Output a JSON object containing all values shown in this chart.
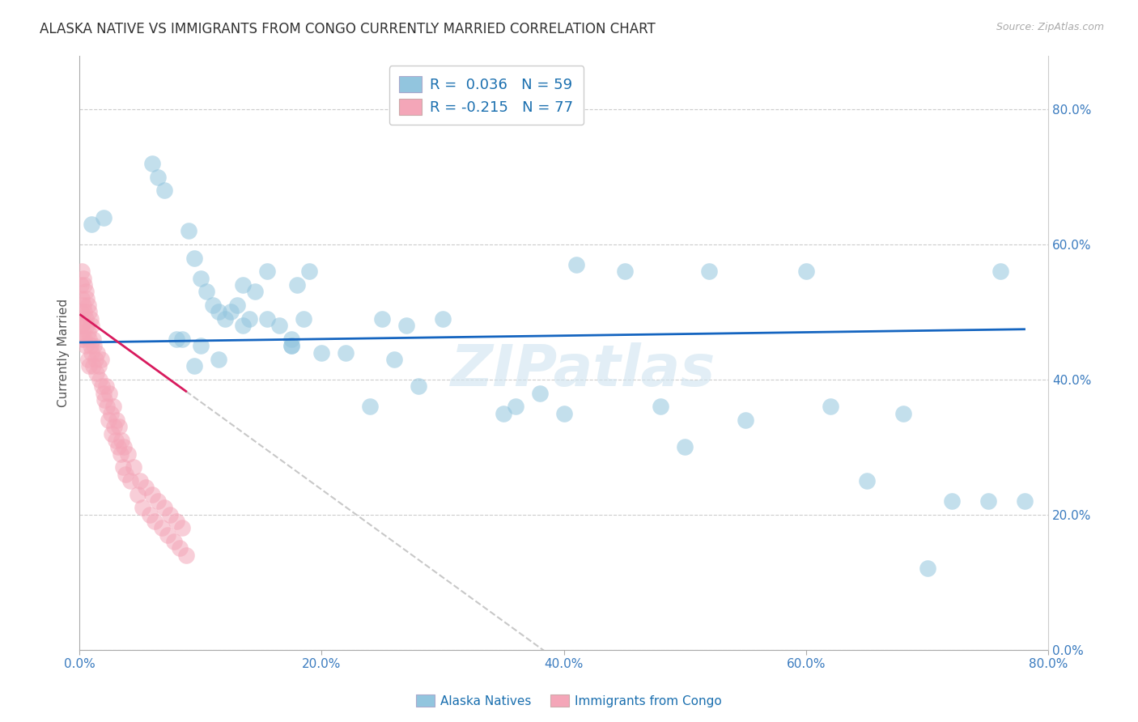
{
  "title": "ALASKA NATIVE VS IMMIGRANTS FROM CONGO CURRENTLY MARRIED CORRELATION CHART",
  "source": "Source: ZipAtlas.com",
  "ylabel": "Currently Married",
  "xmin": 0.0,
  "xmax": 0.8,
  "ymin": 0.0,
  "ymax": 0.88,
  "watermark": "ZIPatlas",
  "legend1_r": "0.036",
  "legend1_n": "59",
  "legend2_r": "-0.215",
  "legend2_n": "77",
  "blue_color": "#92c5de",
  "pink_color": "#f4a6b8",
  "trendline_blue_color": "#1565c0",
  "trendline_pink_color": "#d81b5e",
  "trendline_dashed_color": "#c8c8c8",
  "grid_color": "#cccccc",
  "background_color": "#ffffff",
  "tick_color": "#3a7bbf",
  "title_color": "#333333",
  "source_color": "#aaaaaa",
  "title_fontsize": 12,
  "tick_fontsize": 11,
  "watermark_fontsize": 52,
  "watermark_color": "#d0e4f0",
  "watermark_alpha": 0.6,
  "alaska_native_x": [
    0.02,
    0.01,
    0.06,
    0.065,
    0.07,
    0.09,
    0.095,
    0.1,
    0.105,
    0.11,
    0.115,
    0.12,
    0.125,
    0.13,
    0.135,
    0.135,
    0.145,
    0.155,
    0.165,
    0.175,
    0.185,
    0.175,
    0.18,
    0.19,
    0.2,
    0.085,
    0.095,
    0.1,
    0.115,
    0.14,
    0.155,
    0.175,
    0.22,
    0.24,
    0.25,
    0.26,
    0.27,
    0.28,
    0.3,
    0.35,
    0.36,
    0.38,
    0.4,
    0.41,
    0.45,
    0.48,
    0.5,
    0.52,
    0.55,
    0.6,
    0.62,
    0.65,
    0.68,
    0.7,
    0.72,
    0.75,
    0.78,
    0.76,
    0.08
  ],
  "alaska_native_y": [
    0.64,
    0.63,
    0.72,
    0.7,
    0.68,
    0.62,
    0.58,
    0.55,
    0.53,
    0.51,
    0.5,
    0.49,
    0.5,
    0.51,
    0.54,
    0.48,
    0.53,
    0.56,
    0.48,
    0.46,
    0.49,
    0.45,
    0.54,
    0.56,
    0.44,
    0.46,
    0.42,
    0.45,
    0.43,
    0.49,
    0.49,
    0.45,
    0.44,
    0.36,
    0.49,
    0.43,
    0.48,
    0.39,
    0.49,
    0.35,
    0.36,
    0.38,
    0.35,
    0.57,
    0.56,
    0.36,
    0.3,
    0.56,
    0.34,
    0.56,
    0.36,
    0.25,
    0.35,
    0.12,
    0.22,
    0.22,
    0.22,
    0.56,
    0.46
  ],
  "congo_x": [
    0.001,
    0.001,
    0.001,
    0.002,
    0.002,
    0.002,
    0.002,
    0.003,
    0.003,
    0.003,
    0.004,
    0.004,
    0.004,
    0.005,
    0.005,
    0.005,
    0.006,
    0.006,
    0.007,
    0.007,
    0.007,
    0.008,
    0.008,
    0.008,
    0.009,
    0.009,
    0.01,
    0.01,
    0.011,
    0.011,
    0.012,
    0.013,
    0.014,
    0.015,
    0.016,
    0.017,
    0.018,
    0.019,
    0.02,
    0.021,
    0.022,
    0.023,
    0.024,
    0.025,
    0.026,
    0.027,
    0.028,
    0.029,
    0.03,
    0.031,
    0.032,
    0.033,
    0.034,
    0.035,
    0.036,
    0.037,
    0.038,
    0.04,
    0.042,
    0.045,
    0.048,
    0.05,
    0.052,
    0.055,
    0.058,
    0.06,
    0.062,
    0.065,
    0.068,
    0.07,
    0.073,
    0.075,
    0.078,
    0.08,
    0.083,
    0.085,
    0.088
  ],
  "congo_y": [
    0.54,
    0.5,
    0.48,
    0.56,
    0.52,
    0.48,
    0.46,
    0.55,
    0.51,
    0.47,
    0.54,
    0.5,
    0.46,
    0.53,
    0.49,
    0.45,
    0.52,
    0.48,
    0.51,
    0.47,
    0.43,
    0.5,
    0.46,
    0.42,
    0.49,
    0.45,
    0.48,
    0.44,
    0.46,
    0.42,
    0.45,
    0.43,
    0.41,
    0.44,
    0.42,
    0.4,
    0.43,
    0.39,
    0.38,
    0.37,
    0.39,
    0.36,
    0.34,
    0.38,
    0.35,
    0.32,
    0.36,
    0.33,
    0.31,
    0.34,
    0.3,
    0.33,
    0.29,
    0.31,
    0.27,
    0.3,
    0.26,
    0.29,
    0.25,
    0.27,
    0.23,
    0.25,
    0.21,
    0.24,
    0.2,
    0.23,
    0.19,
    0.22,
    0.18,
    0.21,
    0.17,
    0.2,
    0.16,
    0.19,
    0.15,
    0.18,
    0.14
  ]
}
